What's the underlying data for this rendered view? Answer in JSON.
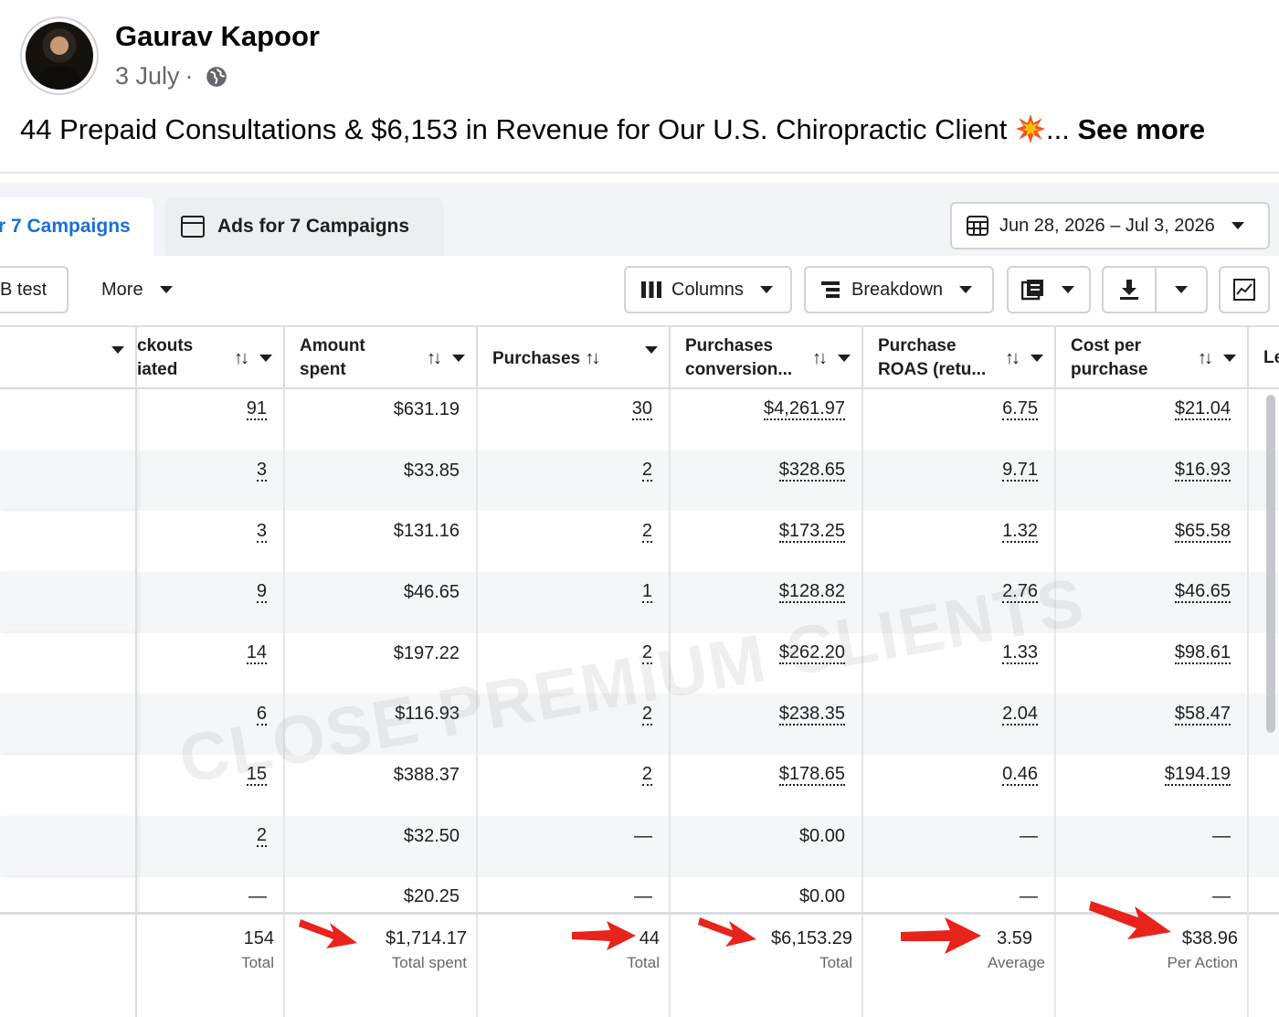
{
  "post": {
    "author": "Gaurav Kapoor",
    "date": "3 July",
    "separator": "·",
    "text": "44 Prepaid Consultations & $6,153 in Revenue for Our U.S. Chiropractic Client",
    "ellipsis": "...",
    "see_more": "See more"
  },
  "tabs": {
    "campaigns": "r 7 Campaigns",
    "ads": "Ads for 7 Campaigns"
  },
  "date_range": "Jun 28, 2026 – Jul 3, 2026",
  "toolbar": {
    "ab_test": "B test",
    "more": "More",
    "columns": "Columns",
    "breakdown": "Breakdown"
  },
  "columns": {
    "c1": [
      "ckouts",
      "iated"
    ],
    "c2": [
      "Amount",
      "spent"
    ],
    "c3": "Purchases",
    "c4": [
      "Purchases",
      "conversion..."
    ],
    "c5": [
      "Purchase",
      "ROAS (retu..."
    ],
    "c6": [
      "Cost per",
      "purchase"
    ],
    "c7": "Le"
  },
  "rows": [
    [
      "91",
      "$631.19",
      "30",
      "$4,261.97",
      "6.75",
      "$21.04"
    ],
    [
      "3",
      "$33.85",
      "2",
      "$328.65",
      "9.71",
      "$16.93"
    ],
    [
      "3",
      "$131.16",
      "2",
      "$173.25",
      "1.32",
      "$65.58"
    ],
    [
      "9",
      "$46.65",
      "1",
      "$128.82",
      "2.76",
      "$46.65"
    ],
    [
      "14",
      "$197.22",
      "2",
      "$262.20",
      "1.33",
      "$98.61"
    ],
    [
      "6",
      "$116.93",
      "2",
      "$238.35",
      "2.04",
      "$58.47"
    ],
    [
      "15",
      "$388.37",
      "2",
      "$178.65",
      "0.46",
      "$194.19"
    ],
    [
      "2",
      "$32.50",
      "—",
      "$0.00",
      "—",
      "—"
    ],
    [
      "—",
      "$20.25",
      "—",
      "$0.00",
      "—",
      "—"
    ]
  ],
  "totals": {
    "c1": {
      "value": "154",
      "label": "Total"
    },
    "c2": {
      "value": "$1,714.17",
      "label": "Total spent"
    },
    "c3": {
      "value": "44",
      "label": "Total"
    },
    "c4": {
      "value": "$6,153.29",
      "label": "Total"
    },
    "c5": {
      "value": "3.59",
      "label": "Average"
    },
    "c6": {
      "value": "$38.96",
      "label": "Per Action"
    }
  },
  "watermark": "CLOSE PREMIUM CLIENTS",
  "colors": {
    "link_blue": "#1a6fd1",
    "arrow_red": "#e8231b",
    "border": "#dadde1"
  }
}
